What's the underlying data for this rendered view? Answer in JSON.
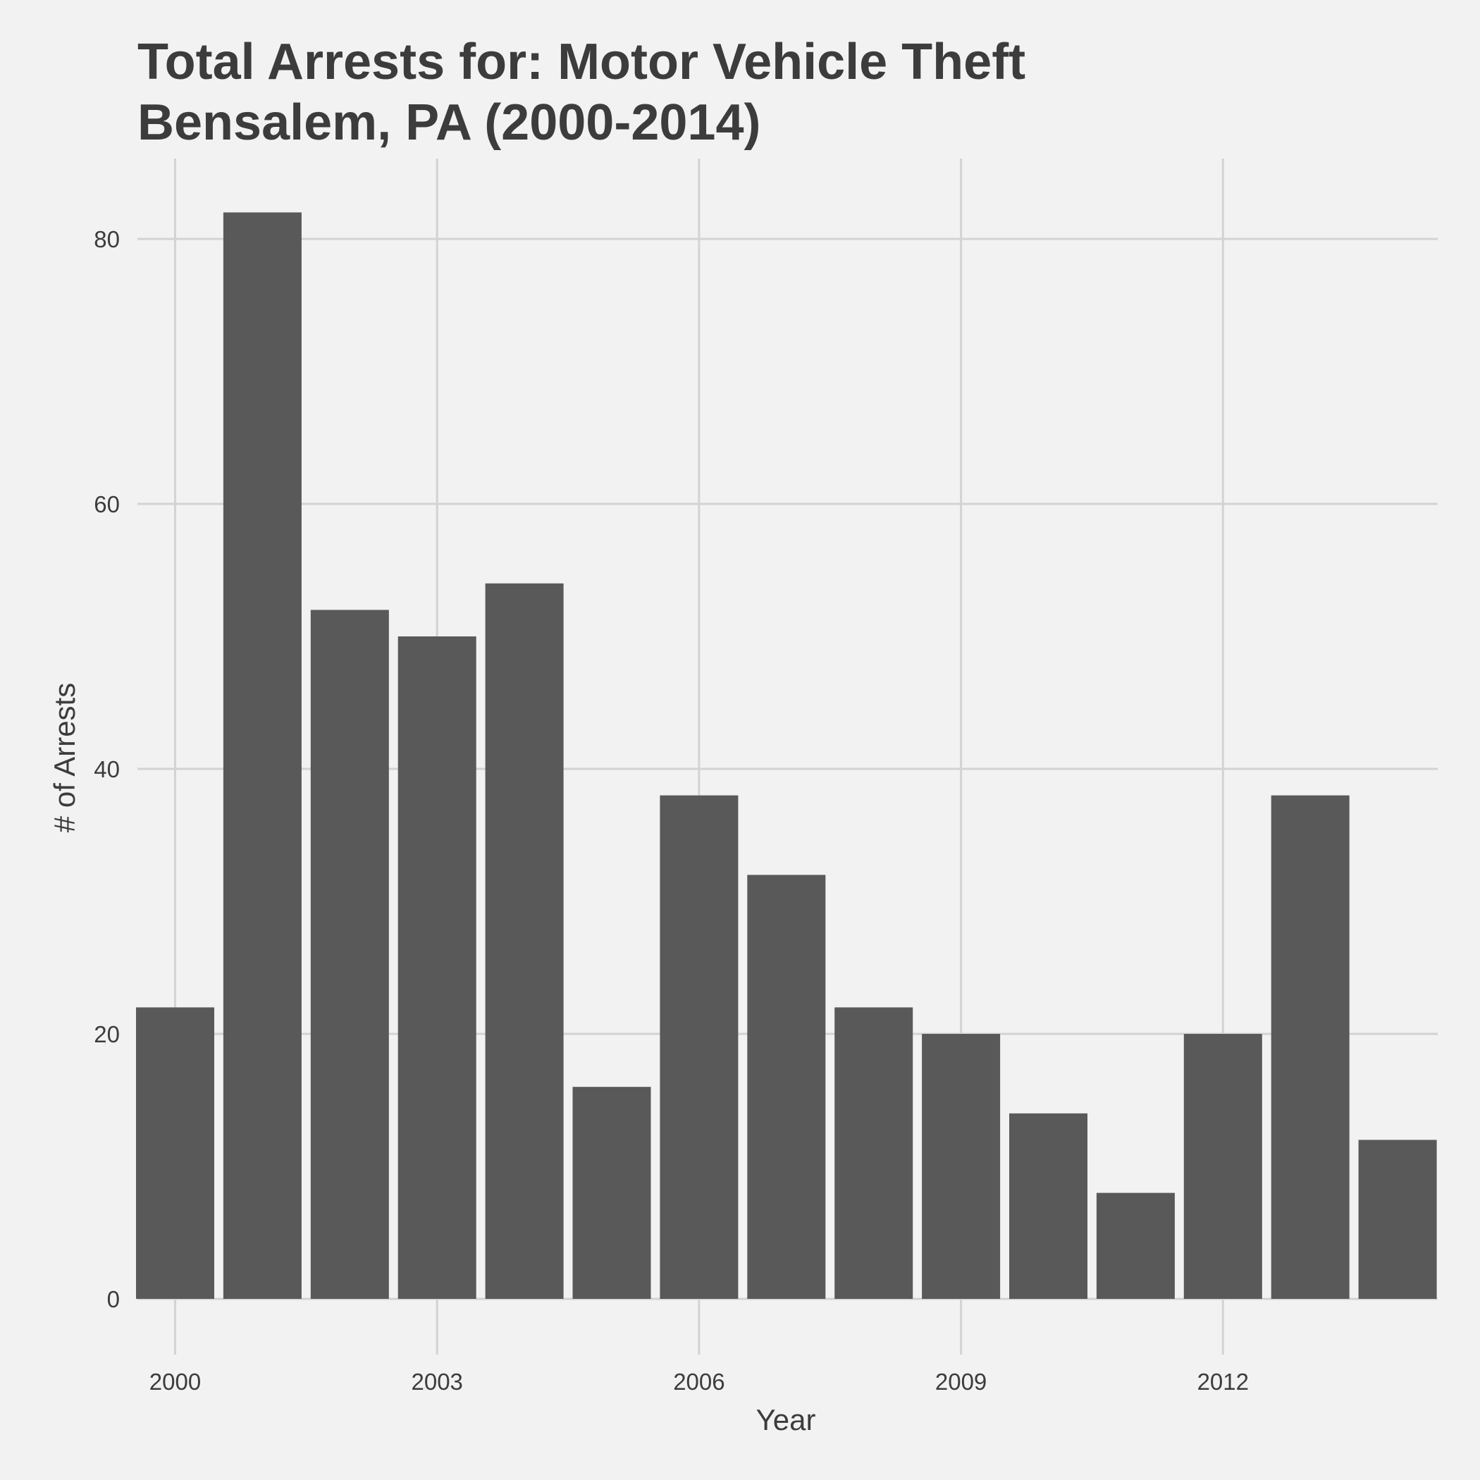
{
  "chart_data": {
    "type": "bar",
    "title_lines": [
      "Total Arrests for: Motor Vehicle Theft",
      "Bensalem, PA (2000-2014)"
    ],
    "xlabel": "Year",
    "ylabel": "# of Arrests",
    "x": [
      2000,
      2001,
      2002,
      2003,
      2004,
      2005,
      2006,
      2007,
      2008,
      2009,
      2010,
      2011,
      2012,
      2013,
      2014
    ],
    "values": [
      22,
      82,
      52,
      50,
      54,
      16,
      38,
      32,
      22,
      20,
      14,
      8,
      20,
      38,
      12
    ],
    "x_ticks": [
      "2000",
      "2003",
      "2006",
      "2009",
      "2012"
    ],
    "y_ticks": [
      "0",
      "20",
      "40",
      "60",
      "80"
    ],
    "ylim": [
      0,
      85
    ],
    "grid": true,
    "legend": "none",
    "colors": {
      "background": "#f2f2f2",
      "bar": "#595959",
      "grid": "#d3d3d3",
      "text": "#3c3c3c"
    }
  }
}
